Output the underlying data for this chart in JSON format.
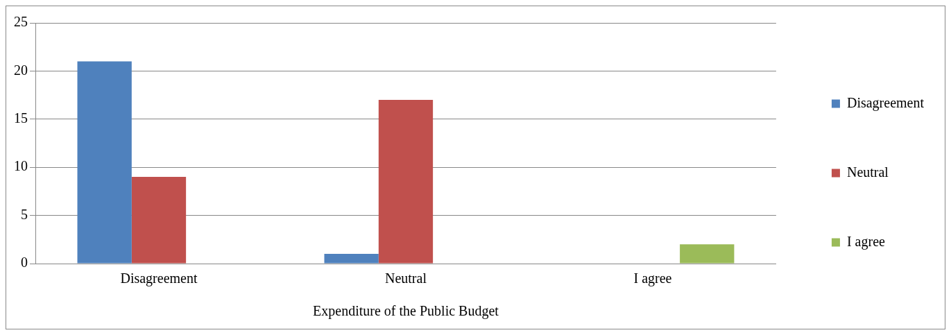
{
  "chart_data": {
    "type": "bar",
    "xlabel": "Expenditure of the Public Budget",
    "categories": [
      "Disagreement",
      "Neutral",
      "I agree"
    ],
    "series": [
      {
        "name": "Disagreement",
        "color": "#4f81bd",
        "values": [
          21,
          1,
          0
        ]
      },
      {
        "name": "Neutral",
        "color": "#c0504d",
        "values": [
          9,
          17,
          0
        ]
      },
      {
        "name": "I agree",
        "color": "#9bbb59",
        "values": [
          0,
          0,
          2
        ]
      }
    ],
    "ylim": [
      0,
      25
    ],
    "yticks": [
      0,
      5,
      10,
      15,
      20,
      25
    ],
    "grid": "y",
    "legend": "right"
  }
}
